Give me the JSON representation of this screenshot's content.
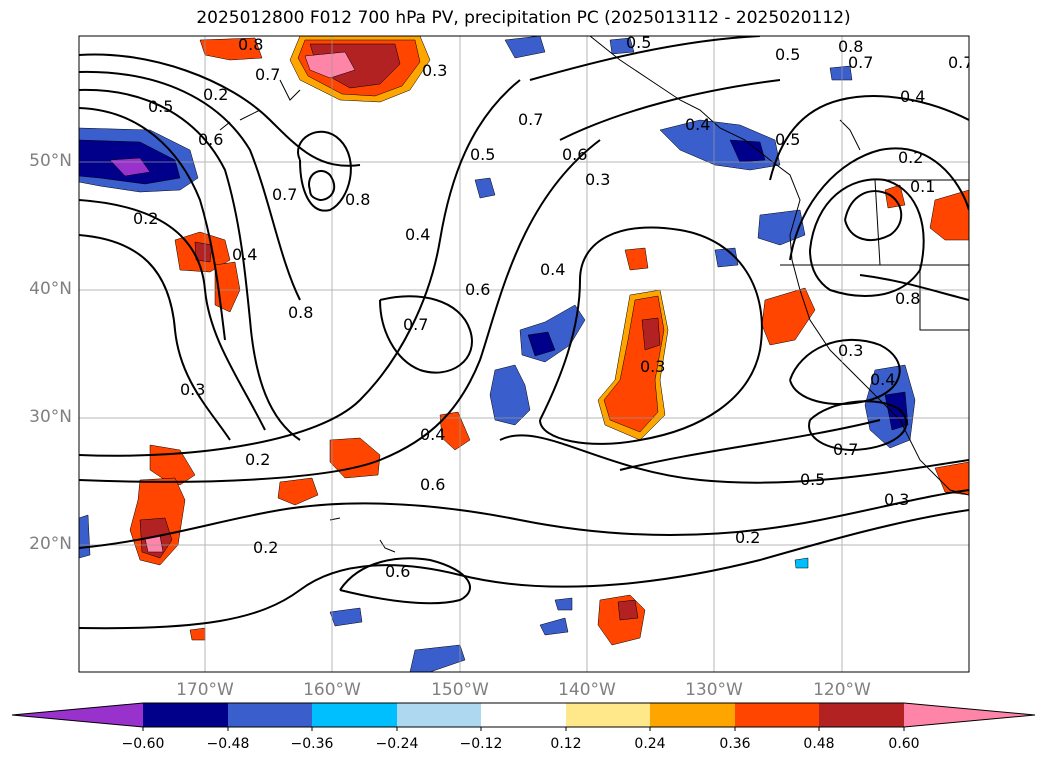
{
  "title": "2025012800 F012 700 hPa PV, precipitation PC (2025013112 - 2025020112)",
  "lat_labels": [
    "50°N",
    "40°N",
    "30°N",
    "20°N"
  ],
  "lon_labels": [
    "170°W",
    "160°W",
    "150°W",
    "140°W",
    "130°W",
    "120°W"
  ],
  "colorbar": {
    "ticks": [
      "−0.60",
      "−0.48",
      "−0.36",
      "−0.24",
      "−0.12",
      "0.12",
      "0.24",
      "0.36",
      "0.48",
      "0.60"
    ],
    "colors": [
      "#9932cc",
      "#00008b",
      "#3a5fcd",
      "#00bfff",
      "#add8f0",
      "#ffffff",
      "#ffe88a",
      "#ffa500",
      "#ff4500",
      "#b22222",
      "#ff85a8"
    ]
  },
  "contour_labels": [
    "0.8",
    "0.7",
    "0.5",
    "0.6",
    "0.3",
    "0.2",
    "0.4",
    "0.7",
    "0.8",
    "0.4",
    "0.5",
    "0.7",
    "0.6",
    "0.3",
    "0.8",
    "0.7",
    "0.6",
    "0.4",
    "0.5",
    "0.2",
    "0.3",
    "0.4",
    "0.6",
    "0.7",
    "0.5",
    "0.3",
    "0.2",
    "0.2",
    "0.6",
    "0.8",
    "0.8",
    "0.4",
    "0.7",
    "0.3",
    "0.5",
    "0.4",
    "0.4",
    "0.5",
    "0.2",
    "0.3",
    "0.7",
    "0.1",
    "0.2"
  ],
  "icons": {
    "colorbar-min-extend": "triangle-left",
    "colorbar-max-extend": "triangle-right"
  }
}
